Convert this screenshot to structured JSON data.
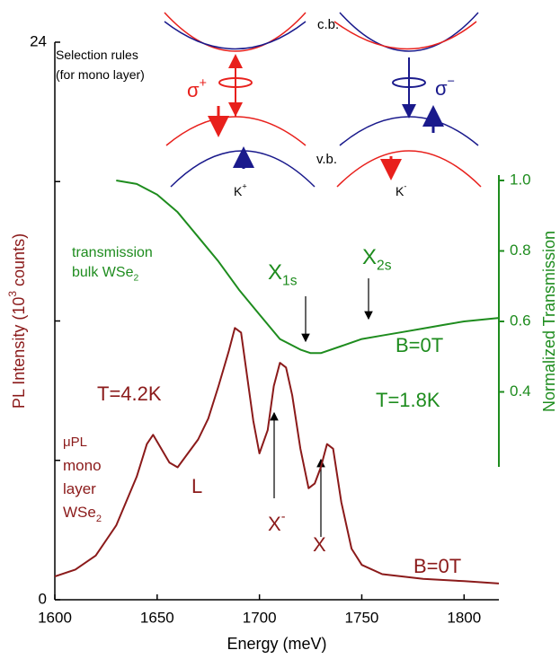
{
  "chart_data": {
    "type": "line",
    "x_label": "Energy (meV)",
    "y_label": {
      "text": "PL Intensity (10",
      "sup": "3",
      "tail": " counts)"
    },
    "y2_label": "Normalized Transmission",
    "xlim": [
      1600,
      1817
    ],
    "xticks": [
      1600,
      1650,
      1700,
      1750,
      1800
    ],
    "ylim": [
      0,
      24
    ],
    "yticks": [
      0,
      24
    ],
    "yticks_minor": [
      6,
      12,
      18
    ],
    "y2lim": [
      0.2,
      1.0
    ],
    "y2ticks": [
      0.4,
      0.6,
      0.8,
      {
        "value": 1.0,
        "label": "1.0"
      }
    ],
    "series": [
      {
        "color": "#8b1a1a",
        "x": [
          1600,
          1610,
          1620,
          1630,
          1640,
          1645,
          1648,
          1652,
          1656,
          1660,
          1665,
          1670,
          1675,
          1680,
          1685,
          1688,
          1691,
          1694,
          1697,
          1700,
          1704,
          1707,
          1710,
          1713,
          1716,
          1720,
          1724,
          1727,
          1730,
          1733,
          1736,
          1740,
          1745,
          1750,
          1760,
          1780,
          1800,
          1817
        ],
        "values": [
          1.0,
          1.3,
          1.9,
          3.2,
          5.3,
          6.7,
          7.1,
          6.5,
          5.9,
          5.7,
          6.3,
          6.9,
          7.8,
          9.2,
          10.7,
          11.7,
          11.5,
          9.6,
          7.7,
          6.3,
          7.3,
          9.2,
          10.2,
          10.0,
          8.8,
          6.5,
          4.8,
          5.0,
          5.7,
          6.7,
          6.5,
          4.2,
          2.2,
          1.5,
          1.1,
          0.9,
          0.8,
          0.7
        ]
      },
      {
        "color": "#1e8c1e",
        "axis": "y2",
        "x": [
          1630,
          1640,
          1650,
          1660,
          1670,
          1680,
          1690,
          1700,
          1710,
          1720,
          1725,
          1730,
          1740,
          1750,
          1760,
          1770,
          1780,
          1790,
          1800,
          1817
        ],
        "values": [
          1.0,
          0.99,
          0.96,
          0.91,
          0.84,
          0.77,
          0.69,
          0.62,
          0.55,
          0.52,
          0.51,
          0.51,
          0.53,
          0.55,
          0.56,
          0.57,
          0.58,
          0.59,
          0.6,
          0.61
        ]
      }
    ],
    "annotations": [
      {
        "text": "Selection rules"
      },
      {
        "text": "(for mono layer)"
      },
      {
        "text": "c.b."
      },
      {
        "text": "v.b."
      },
      {
        "text": "σ",
        "sup": "+"
      },
      {
        "text": "σ",
        "sup": "−"
      },
      {
        "text": "K",
        "sup": "+"
      },
      {
        "text": "K",
        "sup": "-"
      },
      {
        "text": "transmission"
      },
      {
        "text": "bulk WSe",
        "sub": "2"
      },
      {
        "text": "X",
        "sub": "1s"
      },
      {
        "text": "X",
        "sub": "2s"
      },
      {
        "text": "B=0T"
      },
      {
        "text": "T=1.8K"
      },
      {
        "text": "T=4.2K"
      },
      {
        "text": "μPL"
      },
      {
        "text": "mono"
      },
      {
        "text": "layer"
      },
      {
        "text": "WSe",
        "sub": "2"
      },
      {
        "text": "L"
      },
      {
        "text": "X",
        "sup": "-"
      },
      {
        "text": "X"
      },
      {
        "text": "B=0T"
      }
    ]
  }
}
